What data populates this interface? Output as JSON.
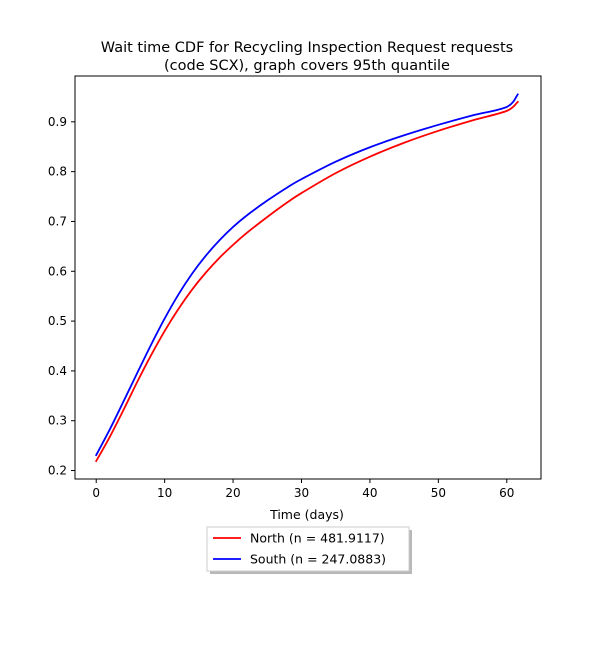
{
  "chart_data": {
    "type": "line",
    "title": "Wait time CDF for Recycling Inspection Request  requests",
    "subtitle": "(code SCX), graph covers 95th quantile",
    "xlabel": "Time (days)",
    "ylabel": "",
    "xlim": [
      -3.1,
      65
    ],
    "ylim": [
      0.183,
      0.992
    ],
    "xticks": [
      0,
      10,
      20,
      30,
      40,
      50,
      60
    ],
    "yticks": [
      0.2,
      0.3,
      0.4,
      0.5,
      0.6,
      0.7,
      0.8,
      0.9
    ],
    "grid": false,
    "legend_position": "below",
    "series": [
      {
        "name": "North (n = 481.9117)",
        "color": "#ff0000",
        "x": [
          0,
          2,
          4,
          6,
          8,
          10,
          12,
          14,
          16,
          18,
          20,
          22,
          25,
          28,
          30,
          35,
          40,
          45,
          50,
          55,
          60,
          61.6
        ],
        "y": [
          0.219,
          0.268,
          0.322,
          0.378,
          0.431,
          0.48,
          0.524,
          0.563,
          0.597,
          0.627,
          0.653,
          0.677,
          0.709,
          0.739,
          0.757,
          0.797,
          0.83,
          0.858,
          0.882,
          0.903,
          0.922,
          0.94
        ]
      },
      {
        "name": "South (n = 247.0883)",
        "color": "#0000ff",
        "x": [
          0,
          2,
          4,
          6,
          8,
          10,
          12,
          14,
          16,
          18,
          20,
          22,
          25,
          28,
          30,
          35,
          40,
          45,
          50,
          55,
          60,
          61.6
        ],
        "y": [
          0.231,
          0.283,
          0.339,
          0.396,
          0.452,
          0.505,
          0.553,
          0.595,
          0.631,
          0.662,
          0.689,
          0.712,
          0.742,
          0.769,
          0.785,
          0.82,
          0.849,
          0.873,
          0.894,
          0.913,
          0.93,
          0.955
        ]
      }
    ]
  }
}
